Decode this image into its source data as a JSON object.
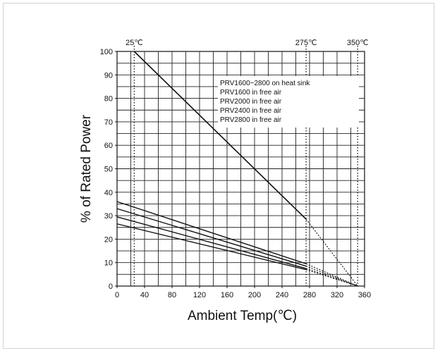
{
  "chart_data": {
    "type": "line",
    "xlabel": "Ambient Temp(℃)",
    "ylabel": "% of Rated Power",
    "xlim": [
      0,
      360
    ],
    "ylim": [
      0,
      100
    ],
    "x_ticks": [
      "0",
      "40",
      "80",
      "120",
      "160",
      "200",
      "240",
      "280",
      "320",
      "360"
    ],
    "y_ticks": [
      "0",
      "10",
      "20",
      "30",
      "40",
      "50",
      "60",
      "70",
      "80",
      "90",
      "100"
    ],
    "top_labels": [
      {
        "text": "25℃",
        "x": 25
      },
      {
        "text": "275℃",
        "x": 275
      },
      {
        "text": "350℃",
        "x": 350
      }
    ],
    "reference_lines_x": [
      25,
      275,
      350
    ],
    "grid": true,
    "legend": {
      "placement": "top-right",
      "entries": [
        "PRV1600~2800 on heat sink",
        "PRV1600 in free air",
        "PRV2000 in free air",
        "PRV2400 in free air",
        "PRV2800 in free air"
      ]
    },
    "series": [
      {
        "name": "PRV1600~2800 on heat sink",
        "points": [
          [
            25,
            100
          ],
          [
            275,
            28.5
          ]
        ],
        "extrapolated_to": [
          350,
          0
        ]
      },
      {
        "name": "PRV1600 in free air",
        "points": [
          [
            0,
            36
          ],
          [
            275,
            9.5
          ]
        ],
        "extrapolated_to": [
          350,
          0
        ]
      },
      {
        "name": "PRV2000 in free air",
        "points": [
          [
            0,
            33
          ],
          [
            275,
            8.5
          ]
        ],
        "extrapolated_to": [
          350,
          0
        ]
      },
      {
        "name": "PRV2400 in free air",
        "points": [
          [
            0,
            29.5
          ],
          [
            275,
            7.5
          ]
        ],
        "extrapolated_to": [
          350,
          0
        ]
      },
      {
        "name": "PRV2800 in free air",
        "points": [
          [
            0,
            26.5
          ],
          [
            275,
            7
          ]
        ],
        "extrapolated_to": [
          350,
          0
        ]
      }
    ]
  }
}
